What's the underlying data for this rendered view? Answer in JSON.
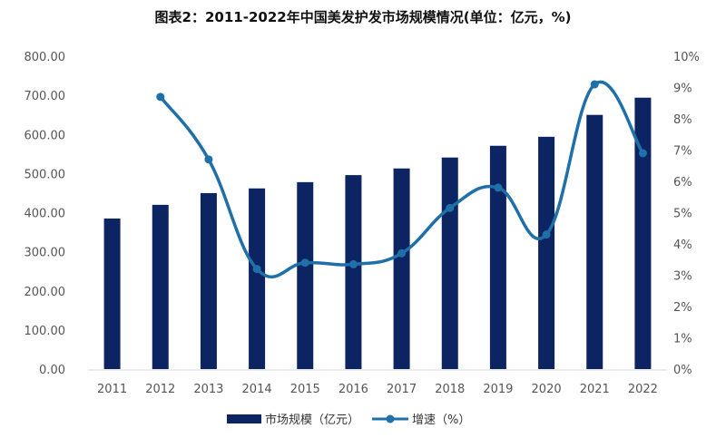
{
  "chart_data": {
    "type": "bar+line",
    "title": "图表2：2011-2022年中国美发护发市场规模情况(单位：亿元，%)",
    "categories": [
      "2011",
      "2012",
      "2013",
      "2014",
      "2015",
      "2016",
      "2017",
      "2018",
      "2019",
      "2020",
      "2021",
      "2022"
    ],
    "series": [
      {
        "name": "市场规模（亿元）",
        "type": "bar",
        "axis": "left",
        "color": "#0d2462",
        "values": [
          385,
          420,
          450,
          462,
          478,
          496,
          513,
          541,
          571,
          594,
          650,
          694
        ]
      },
      {
        "name": "增速（%）",
        "type": "line",
        "axis": "right",
        "color": "#1f6fa8",
        "smooth": true,
        "values": [
          null,
          8.7,
          6.7,
          3.2,
          3.4,
          3.35,
          3.7,
          5.15,
          5.8,
          4.3,
          9.1,
          6.9
        ]
      }
    ],
    "yleft": {
      "range": [
        0,
        800
      ],
      "ticks": [
        "0.00",
        "100.00",
        "200.00",
        "300.00",
        "400.00",
        "500.00",
        "600.00",
        "700.00",
        "800.00"
      ]
    },
    "yright": {
      "range": [
        0,
        10
      ],
      "ticks": [
        "0%",
        "1%",
        "2%",
        "3%",
        "4%",
        "5%",
        "6%",
        "7%",
        "8%",
        "9%",
        "10%"
      ]
    },
    "grid": false,
    "legend": "bottom"
  }
}
